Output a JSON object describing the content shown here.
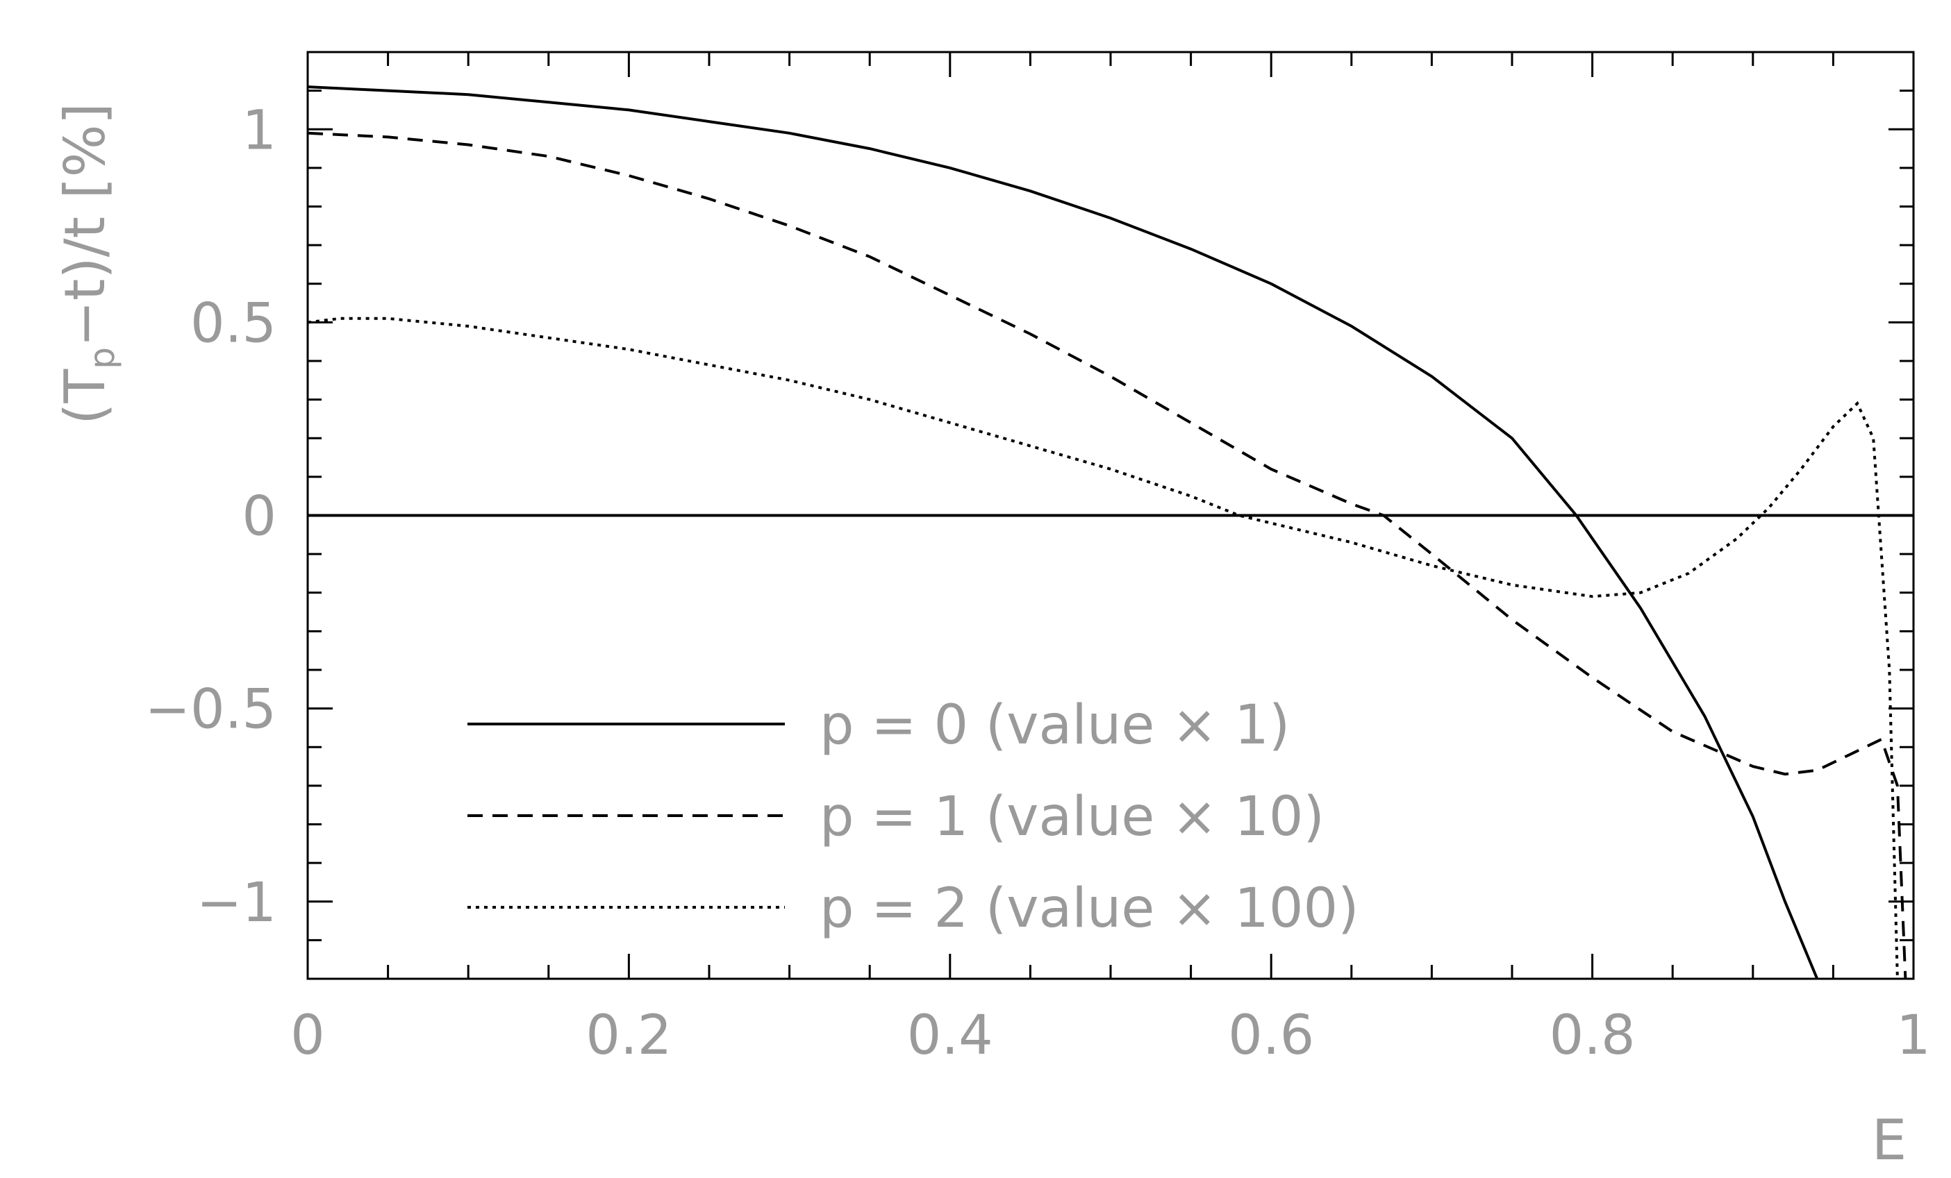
{
  "chart_data": {
    "type": "line",
    "title": "",
    "xlabel": "E",
    "ylabel": {
      "prefix": "(T",
      "subscript": "p",
      "suffix": "−t)/t [%]"
    },
    "xlim": [
      0,
      1
    ],
    "ylim": [
      -1.2,
      1.2
    ],
    "x_ticks": [
      {
        "value": 0,
        "label": "0"
      },
      {
        "value": 0.2,
        "label": "0.2"
      },
      {
        "value": 0.4,
        "label": "0.4"
      },
      {
        "value": 0.6,
        "label": "0.6"
      },
      {
        "value": 0.8,
        "label": "0.8"
      },
      {
        "value": 1,
        "label": "1"
      }
    ],
    "y_ticks": [
      {
        "value": -1,
        "label": "−1"
      },
      {
        "value": -0.5,
        "label": "−0.5"
      },
      {
        "value": 0,
        "label": "0"
      },
      {
        "value": 0.5,
        "label": "0.5"
      },
      {
        "value": 1,
        "label": "1"
      }
    ],
    "grid": false,
    "zero_line": true,
    "legend_position": "bottom-center",
    "series": [
      {
        "name": "p = 0 (value × 1)",
        "style": "solid",
        "x": [
          0,
          0.05,
          0.1,
          0.15,
          0.2,
          0.25,
          0.3,
          0.35,
          0.4,
          0.45,
          0.5,
          0.55,
          0.6,
          0.65,
          0.7,
          0.75,
          0.79,
          0.83,
          0.87,
          0.9,
          0.92,
          0.94
        ],
        "y": [
          1.11,
          1.1,
          1.09,
          1.07,
          1.05,
          1.02,
          0.99,
          0.95,
          0.9,
          0.84,
          0.77,
          0.69,
          0.6,
          0.49,
          0.36,
          0.2,
          0.0,
          -0.24,
          -0.52,
          -0.78,
          -1.0,
          -1.2
        ]
      },
      {
        "name": "p = 1 (value × 10)",
        "style": "dashed",
        "x": [
          0,
          0.05,
          0.1,
          0.15,
          0.2,
          0.25,
          0.3,
          0.35,
          0.4,
          0.45,
          0.5,
          0.55,
          0.6,
          0.65,
          0.67,
          0.7,
          0.75,
          0.8,
          0.85,
          0.9,
          0.92,
          0.94,
          0.96,
          0.98,
          0.99,
          0.995
        ],
        "y": [
          0.99,
          0.98,
          0.96,
          0.93,
          0.88,
          0.82,
          0.75,
          0.67,
          0.57,
          0.47,
          0.36,
          0.24,
          0.12,
          0.03,
          0.0,
          -0.1,
          -0.27,
          -0.42,
          -0.56,
          -0.65,
          -0.67,
          -0.66,
          -0.62,
          -0.58,
          -0.7,
          -1.2
        ]
      },
      {
        "name": "p = 2 (value × 100)",
        "style": "dotted",
        "x": [
          0,
          0.02,
          0.05,
          0.1,
          0.15,
          0.2,
          0.25,
          0.3,
          0.35,
          0.4,
          0.45,
          0.5,
          0.55,
          0.58,
          0.6,
          0.65,
          0.7,
          0.75,
          0.8,
          0.83,
          0.86,
          0.89,
          0.91,
          0.93,
          0.95,
          0.965,
          0.975,
          0.985,
          0.99
        ],
        "y": [
          0.5,
          0.51,
          0.51,
          0.49,
          0.46,
          0.43,
          0.39,
          0.35,
          0.3,
          0.24,
          0.18,
          0.12,
          0.05,
          0.0,
          -0.02,
          -0.07,
          -0.13,
          -0.18,
          -0.21,
          -0.2,
          -0.15,
          -0.06,
          0.02,
          0.12,
          0.23,
          0.29,
          0.2,
          -0.4,
          -1.2
        ]
      }
    ]
  }
}
